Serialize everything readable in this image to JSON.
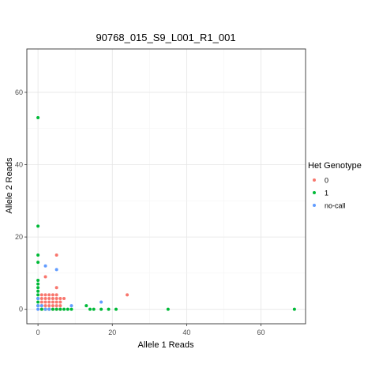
{
  "chart_data": {
    "type": "scatter",
    "title": "90768_015_S9_L001_R1_001",
    "xlabel": "Allele 1 Reads",
    "ylabel": "Allele 2 Reads",
    "xlim": [
      -3,
      72
    ],
    "ylim": [
      -4,
      72
    ],
    "x_ticks": [
      0,
      20,
      40,
      60
    ],
    "y_ticks": [
      0,
      20,
      40,
      60
    ],
    "grid": true,
    "legend_position": "right",
    "legend_title": "Het Genotype",
    "series": [
      {
        "name": "0",
        "color": "#F8766D",
        "points": [
          [
            1,
            0
          ],
          [
            2,
            0
          ],
          [
            3,
            0
          ],
          [
            4,
            0
          ],
          [
            5,
            0
          ],
          [
            6,
            0
          ],
          [
            1,
            1
          ],
          [
            2,
            1
          ],
          [
            3,
            1
          ],
          [
            4,
            1
          ],
          [
            5,
            1
          ],
          [
            6,
            1
          ],
          [
            1,
            2
          ],
          [
            2,
            2
          ],
          [
            3,
            2
          ],
          [
            4,
            2
          ],
          [
            5,
            2
          ],
          [
            6,
            2
          ],
          [
            1,
            3
          ],
          [
            2,
            3
          ],
          [
            3,
            3
          ],
          [
            4,
            3
          ],
          [
            5,
            3
          ],
          [
            6,
            3
          ],
          [
            7,
            3
          ],
          [
            1,
            4
          ],
          [
            2,
            4
          ],
          [
            3,
            4
          ],
          [
            4,
            4
          ],
          [
            5,
            4
          ],
          [
            5,
            6
          ],
          [
            2,
            9
          ],
          [
            5,
            15
          ],
          [
            24,
            4
          ]
        ]
      },
      {
        "name": "1",
        "color": "#00BA38",
        "points": [
          [
            0,
            53
          ],
          [
            0,
            23
          ],
          [
            0,
            15
          ],
          [
            0,
            13
          ],
          [
            0,
            8
          ],
          [
            0,
            7
          ],
          [
            0,
            6
          ],
          [
            0,
            5
          ],
          [
            0,
            4
          ],
          [
            0,
            3
          ],
          [
            0,
            2
          ],
          [
            0,
            1
          ],
          [
            1,
            0
          ],
          [
            2,
            0
          ],
          [
            3,
            0
          ],
          [
            4,
            0
          ],
          [
            5,
            0
          ],
          [
            6,
            0
          ],
          [
            7,
            0
          ],
          [
            8,
            0
          ],
          [
            9,
            0
          ],
          [
            13,
            1
          ],
          [
            14,
            0
          ],
          [
            15,
            0
          ],
          [
            17,
            0
          ],
          [
            19,
            0
          ],
          [
            21,
            0
          ],
          [
            35,
            0
          ],
          [
            69,
            0
          ]
        ]
      },
      {
        "name": "no-call",
        "color": "#619CFF",
        "points": [
          [
            0,
            0
          ],
          [
            0,
            1
          ],
          [
            1,
            1
          ],
          [
            2,
            0
          ],
          [
            3,
            0
          ],
          [
            0,
            3
          ],
          [
            9,
            1
          ],
          [
            17,
            2
          ],
          [
            2,
            12
          ],
          [
            5,
            11
          ]
        ]
      }
    ]
  }
}
